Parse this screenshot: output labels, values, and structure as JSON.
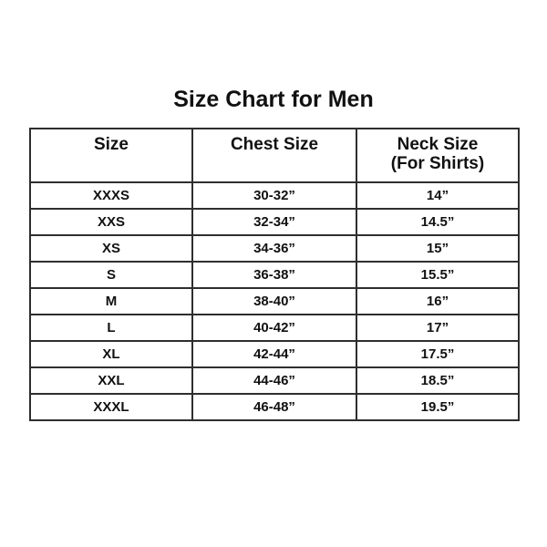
{
  "title": "Size Chart for Men",
  "colors": {
    "background": "#ffffff",
    "border": "#2e2e2e",
    "text": "#111111"
  },
  "table": {
    "headers": {
      "size": "Size",
      "chest": "Chest Size",
      "neck_line1": "Neck Size",
      "neck_line2": "(For Shirts)"
    },
    "rows": [
      {
        "size": "XXXS",
        "chest": "30-32”",
        "neck": "14”"
      },
      {
        "size": "XXS",
        "chest": "32-34”",
        "neck": "14.5”"
      },
      {
        "size": "XS",
        "chest": "34-36”",
        "neck": "15”"
      },
      {
        "size": "S",
        "chest": "36-38”",
        "neck": "15.5”"
      },
      {
        "size": "M",
        "chest": "38-40”",
        "neck": "16”"
      },
      {
        "size": "L",
        "chest": "40-42”",
        "neck": "17”"
      },
      {
        "size": "XL",
        "chest": "42-44”",
        "neck": "17.5”"
      },
      {
        "size": "XXL",
        "chest": "44-46”",
        "neck": "18.5”"
      },
      {
        "size": "XXXL",
        "chest": "46-48”",
        "neck": "19.5”"
      }
    ]
  }
}
